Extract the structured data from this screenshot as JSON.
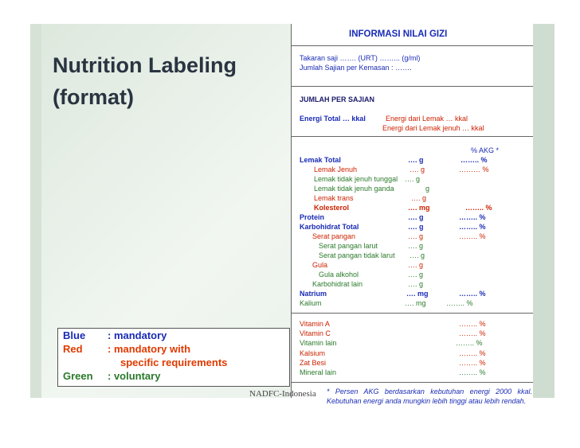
{
  "slide": {
    "title_line1": "Nutrition Labeling",
    "title_line2": "(format)",
    "footer": "NADFC-Indonesia"
  },
  "legend": {
    "items": [
      {
        "key": "Blue",
        "value": ": mandatory",
        "color": "#1a2bb5"
      },
      {
        "key": "Red",
        "value": ": mandatory with",
        "value2": "specific  requirements",
        "color": "#e03a00"
      },
      {
        "key": "Green",
        "value": ": voluntary",
        "color": "#2a7a2a"
      }
    ]
  },
  "label": {
    "header": "INFORMASI NILAI GIZI",
    "serving_size": "Takaran saji   ……. (URT) ……...    (g/ml)",
    "servings_per_pack": "Jumlah Sajian per Kemasan  : …….",
    "per_serving": "JUMLAH PER SAJIAN",
    "energy_total": "Energi Total … kkal",
    "energy_fat": "Energi dari Lemak          … kkal",
    "energy_sat_fat": "Energi dari Lemak jenuh … kkal",
    "akg_header": "% AKG *",
    "nutrients": [
      {
        "name": "Lemak Total",
        "amount": "….  g",
        "akg": "…….. %"
      },
      {
        "name": "Lemak Jenuh",
        "amount": "….  g",
        "akg": "……… %"
      },
      {
        "name": "Lemak tidak jenuh tunggal",
        "amount": "….  g",
        "akg": ""
      },
      {
        "name": "Lemak tidak jenuh ganda",
        "amount": "g",
        "akg": ""
      },
      {
        "name": "Lemak trans",
        "amount": "….  g",
        "akg": ""
      },
      {
        "name": "Kolesterol",
        "amount": "….  mg",
        "akg": "…….. %"
      },
      {
        "name": "Protein",
        "amount": "….  g",
        "akg": "…….. %"
      },
      {
        "name": "Karbohidrat  Total",
        "amount": "….  g",
        "akg": "…….. %"
      },
      {
        "name": "Serat pangan",
        "amount": "….  g",
        "akg": "…….. %"
      },
      {
        "name": "Serat pangan larut",
        "amount": "….  g",
        "akg": ""
      },
      {
        "name": "Serat pangan tidak larut",
        "amount": "….  g",
        "akg": ""
      },
      {
        "name": "Gula",
        "amount": "….  g",
        "akg": ""
      },
      {
        "name": "Gula alkohol",
        "amount": "….  g",
        "akg": ""
      },
      {
        "name": "Karbohidrat lain",
        "amount": "….  g",
        "akg": ""
      },
      {
        "name": "Natrium",
        "amount": "…. mg",
        "akg": "…….. %"
      },
      {
        "name": "Kalium",
        "amount": "…. mg",
        "akg": "…….. %"
      }
    ],
    "vitamins": [
      {
        "name": "Vitamin A",
        "akg": "…….. %"
      },
      {
        "name": "Vitamin C",
        "akg": "…….. %"
      },
      {
        "name": "Vitamin lain",
        "akg": "…….. %"
      },
      {
        "name": "Kalsium",
        "akg": "…….. %"
      },
      {
        "name": "Zat Besi",
        "akg": "…….. %"
      },
      {
        "name": "Mineral lain",
        "akg": "…….. %"
      }
    ],
    "footnote": "* Persen AKG berdasarkan kebutuhan energi 2000 kkal. Kebutuhan energi anda mungkin lebih tinggi atau lebih rendah."
  }
}
